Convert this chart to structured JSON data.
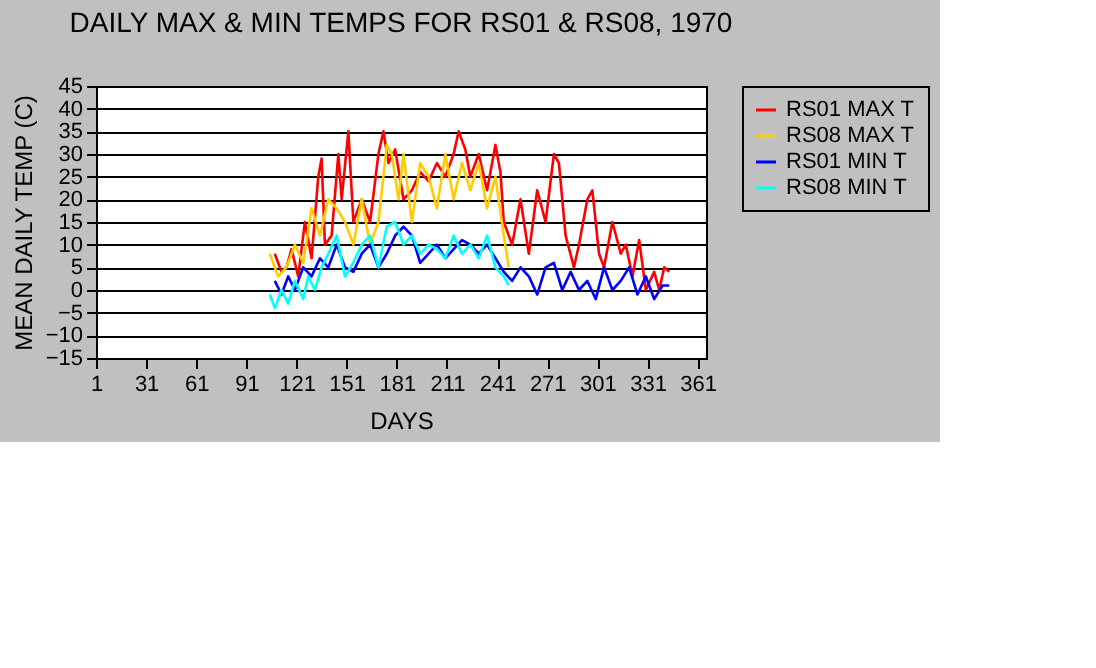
{
  "chart_data": {
    "type": "line",
    "title": "DAILY MAX & MIN TEMPS FOR RS01 & RS08, 1970",
    "xlabel": "DAYS",
    "ylabel": "MEAN DAILY TEMP (C)",
    "xlim": [
      1,
      366
    ],
    "xticks": [
      1,
      31,
      61,
      91,
      121,
      151,
      181,
      211,
      241,
      271,
      301,
      331,
      361
    ],
    "ylim": [
      -15,
      45
    ],
    "yticks": [
      -15,
      -10,
      -5,
      0,
      5,
      10,
      15,
      20,
      25,
      30,
      35,
      40,
      45
    ],
    "grid": "y",
    "legend": "right",
    "line_style": "solid",
    "marker": "none",
    "series": [
      {
        "name": "RS01 MAX T",
        "color": "#ff0000",
        "x": [
          108,
          112,
          115,
          118,
          122,
          126,
          130,
          134,
          136,
          138,
          142,
          146,
          148,
          152,
          155,
          160,
          165,
          170,
          173,
          176,
          180,
          185,
          190,
          195,
          200,
          205,
          210,
          215,
          218,
          222,
          225,
          230,
          235,
          240,
          243,
          245,
          250,
          255,
          260,
          265,
          270,
          275,
          278,
          282,
          287,
          290,
          295,
          298,
          302,
          305,
          310,
          315,
          318,
          322,
          326,
          330,
          335,
          338,
          341,
          344
        ],
        "values": [
          8,
          4,
          5,
          9,
          3,
          15,
          7,
          25,
          29,
          10,
          12,
          30,
          20,
          35,
          15,
          20,
          15,
          30,
          35,
          28,
          31,
          20,
          22,
          26,
          24,
          28,
          25,
          30,
          35,
          31,
          25,
          30,
          22,
          32,
          26,
          15,
          10,
          20,
          8,
          22,
          15,
          30,
          28,
          12,
          5,
          10,
          20,
          22,
          8,
          5,
          15,
          8,
          10,
          3,
          11,
          0,
          4,
          0,
          5,
          4
        ]
      },
      {
        "name": "RS08 MAX T",
        "color": "#ffcc00",
        "x": [
          105,
          110,
          115,
          120,
          125,
          130,
          135,
          140,
          145,
          150,
          155,
          160,
          165,
          170,
          175,
          178,
          182,
          185,
          190,
          195,
          200,
          205,
          210,
          215,
          220,
          225,
          230,
          235,
          240,
          245,
          248
        ],
        "values": [
          8,
          3,
          5,
          10,
          6,
          18,
          12,
          20,
          18,
          15,
          10,
          20,
          10,
          15,
          32,
          30,
          20,
          30,
          15,
          28,
          25,
          18,
          30,
          20,
          28,
          22,
          28,
          18,
          25,
          12,
          5
        ]
      },
      {
        "name": "RS01 MIN T",
        "color": "#0000ff",
        "x": [
          108,
          112,
          116,
          120,
          125,
          130,
          135,
          140,
          145,
          150,
          155,
          160,
          165,
          170,
          175,
          180,
          185,
          190,
          195,
          200,
          205,
          210,
          215,
          220,
          225,
          230,
          235,
          240,
          245,
          250,
          255,
          260,
          265,
          270,
          275,
          280,
          285,
          290,
          295,
          300,
          305,
          310,
          315,
          320,
          325,
          330,
          335,
          340,
          344
        ],
        "values": [
          2,
          -1,
          3,
          0,
          5,
          3,
          7,
          5,
          10,
          5,
          4,
          8,
          10,
          5,
          8,
          12,
          14,
          12,
          6,
          8,
          10,
          7,
          9,
          11,
          10,
          8,
          10,
          7,
          4,
          2,
          5,
          3,
          -1,
          5,
          6,
          0,
          4,
          0,
          2,
          -2,
          5,
          0,
          2,
          5,
          -1,
          3,
          -2,
          1,
          1
        ]
      },
      {
        "name": "RS08 MIN T",
        "color": "#00ffff",
        "x": [
          105,
          108,
          112,
          116,
          120,
          125,
          128,
          132,
          136,
          140,
          145,
          150,
          155,
          160,
          165,
          170,
          175,
          180,
          185,
          190,
          195,
          200,
          205,
          210,
          215,
          220,
          225,
          230,
          235,
          240,
          245,
          248
        ],
        "values": [
          -1,
          -4,
          0,
          -3,
          2,
          -2,
          3,
          0,
          5,
          8,
          12,
          3,
          6,
          10,
          12,
          5,
          14,
          15,
          10,
          12,
          8,
          10,
          9,
          7,
          12,
          8,
          10,
          7,
          12,
          5,
          3,
          1
        ]
      }
    ]
  }
}
